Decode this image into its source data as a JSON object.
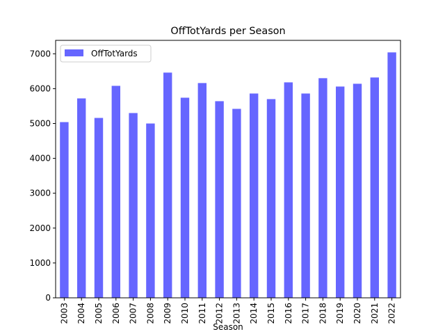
{
  "chart_data": {
    "type": "bar",
    "title": "OffTotYards per Season",
    "x_label": "Season",
    "categories": [
      "2003",
      "2004",
      "2005",
      "2006",
      "2007",
      "2008",
      "2009",
      "2010",
      "2011",
      "2012",
      "2013",
      "2014",
      "2015",
      "2016",
      "2017",
      "2018",
      "2019",
      "2020",
      "2021",
      "2022"
    ],
    "series": [
      {
        "name": "OffTotYards",
        "color": "#6666ff",
        "values": [
          5040,
          5720,
          5160,
          6080,
          5300,
          5000,
          6460,
          5740,
          6160,
          5640,
          5420,
          5860,
          5700,
          6180,
          5860,
          6300,
          6060,
          6140,
          6320,
          7040
        ]
      }
    ],
    "ylim": [
      0,
      7385
    ],
    "yticks": [
      0,
      1000,
      2000,
      3000,
      4000,
      5000,
      6000,
      7000
    ],
    "legend": "upper left"
  }
}
